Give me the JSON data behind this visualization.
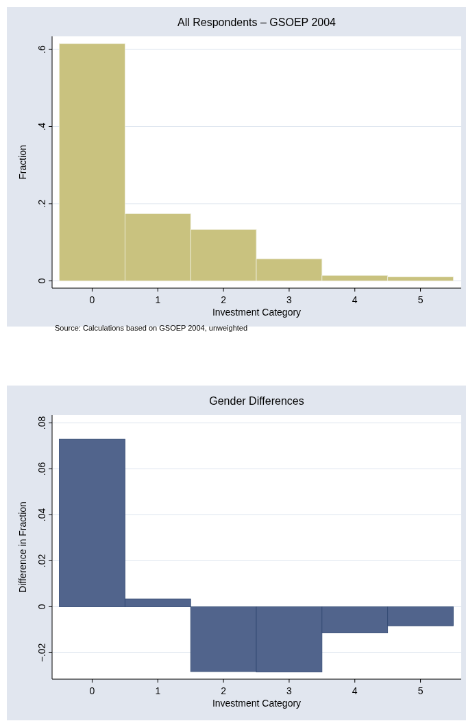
{
  "chart_data": [
    {
      "type": "histogram",
      "title": "All Respondents – GSOEP 2004",
      "xlabel": "Investment Category",
      "ylabel": "Fraction",
      "annotations": [
        "Source: Calculations based on GSOEP 2004, unweighted"
      ],
      "bins": [
        -0.5,
        0.5,
        1.5,
        2.5,
        3.5,
        4.5,
        5.5
      ],
      "values": [
        0.615,
        0.174,
        0.133,
        0.057,
        0.014,
        0.01
      ],
      "color": "#c9c27f",
      "xlim": [
        -0.61,
        5.62
      ],
      "xticks": [
        0,
        1,
        2,
        3,
        4,
        5
      ],
      "ylim": [
        -0.019,
        0.634
      ],
      "yticks": [
        0,
        {
          "value": 0.2,
          "label": ".2"
        },
        {
          "value": 0.4,
          "label": ".4"
        },
        {
          "value": 0.6,
          "label": ".6"
        }
      ],
      "grid": "y"
    },
    {
      "type": "histogram",
      "title": "Gender Differences",
      "xlabel": "Investment Category",
      "ylabel": "Difference in Fraction",
      "bins": [
        -0.5,
        0.5,
        1.5,
        2.5,
        3.5,
        4.5,
        5.5
      ],
      "values": [
        0.0729,
        0.0034,
        -0.0282,
        -0.0284,
        -0.0114,
        -0.0083
      ],
      "color": "#51648c",
      "xlim": [
        -0.61,
        5.62
      ],
      "xticks": [
        0,
        1,
        2,
        3,
        4,
        5
      ],
      "ylim": [
        -0.0315,
        0.0834
      ],
      "yticks": [
        {
          "value": -0.02,
          "label": "−.02"
        },
        0,
        {
          "value": 0.02,
          "label": ".02"
        },
        {
          "value": 0.04,
          "label": ".04"
        },
        {
          "value": 0.06,
          "label": ".06"
        },
        {
          "value": 0.08,
          "label": ".08"
        }
      ],
      "grid": "y"
    }
  ]
}
